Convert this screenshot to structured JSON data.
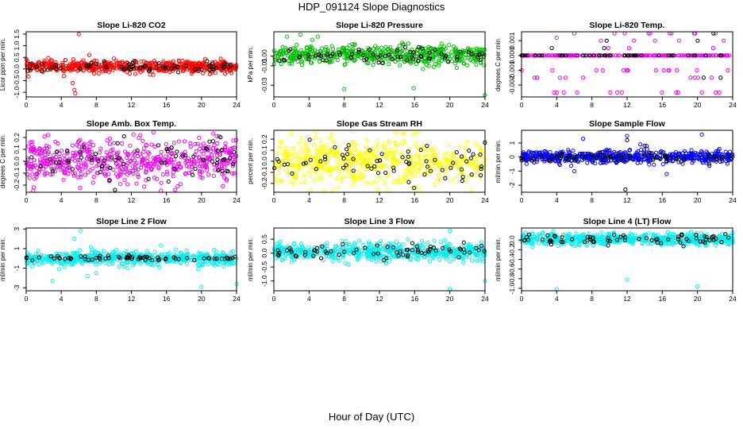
{
  "figure": {
    "title": "HDP_091124  Slope Diagnostics",
    "xlabel": "Hour of Day (UTC)"
  },
  "chart_data": [
    {
      "type": "scatter",
      "title": "Slope Li-820 CO2",
      "ylabel": "Licor ppm per min.",
      "xlim": [
        0,
        24
      ],
      "ylim": [
        -1.2,
        1.6
      ],
      "yticks": [
        -1.0,
        -0.5,
        0.0,
        0.5,
        1.0,
        1.5
      ],
      "ytick_labels": [
        "-1.0",
        "-0.5",
        "0.0",
        "0.5",
        "1.0",
        "1.5"
      ],
      "xticks": [
        0,
        4,
        8,
        12,
        16,
        20,
        24
      ],
      "series": [
        {
          "color": "#ff0000",
          "center": 0.1,
          "spread": 0.12,
          "count": 560,
          "outliers": [
            [
              6.0,
              1.5
            ],
            [
              5.3,
              -0.6
            ],
            [
              5.5,
              -0.9
            ],
            [
              5.6,
              -1.05
            ],
            [
              4.3,
              -0.3
            ],
            [
              7.2,
              0.6
            ],
            [
              10.0,
              0.45
            ]
          ]
        },
        {
          "color": "#000000",
          "center": 0.1,
          "spread": 0.1,
          "count": 70,
          "outliers": []
        }
      ]
    },
    {
      "type": "scatter",
      "title": "Slope Li-820 Pressure",
      "ylabel": "kPa per min.",
      "xlim": [
        0,
        24
      ],
      "ylim": [
        -0.042,
        0.025
      ],
      "yticks": [
        -0.03,
        -0.01,
        0.0
      ],
      "ytick_labels": [
        "-0.03",
        "-0.01",
        "0.00"
      ],
      "xticks": [
        0,
        4,
        8,
        12,
        16,
        20,
        24
      ],
      "series": [
        {
          "color": "#00bb00",
          "center": 0.001,
          "spread": 0.005,
          "count": 520,
          "outliers": [
            [
              8.0,
              -0.034
            ],
            [
              15.9,
              -0.033
            ],
            [
              24.0,
              -0.04
            ],
            [
              1.5,
              0.02
            ],
            [
              3.0,
              0.022
            ],
            [
              5.0,
              0.02
            ]
          ]
        },
        {
          "color": "#000000",
          "center": 0.0,
          "spread": 0.004,
          "count": 70,
          "outliers": []
        }
      ]
    },
    {
      "type": "scatter",
      "title": "Slope Li-820 Temp.",
      "ylabel": "degrees C per min.",
      "xlim": [
        0,
        24
      ],
      "ylim": [
        -0.0028,
        0.0016
      ],
      "yticks": [
        -0.002,
        -0.001,
        0.0,
        0.001
      ],
      "ytick_labels": [
        "-0.002",
        "-0.001",
        "0.000",
        "0.001"
      ],
      "xticks": [
        0,
        4,
        8,
        12,
        16,
        20,
        24
      ],
      "levels": [
        -0.0025,
        -0.0015,
        -0.001,
        0.0,
        0.0005,
        0.001,
        0.0015
      ],
      "series": [
        {
          "color": "#ee00ee",
          "center": 0.0,
          "spread": 0.0,
          "count": 260,
          "outliers": [
            [
              4.0,
              -0.0025
            ],
            [
              4.0,
              0.0012
            ],
            [
              6.0,
              0.0016
            ],
            [
              3.5,
              -0.001
            ],
            [
              5.0,
              -0.0015
            ]
          ]
        },
        {
          "color": "#000000",
          "center": 0.0,
          "spread": 0.0,
          "count": 50,
          "outliers": []
        }
      ]
    },
    {
      "type": "scatter",
      "title": "Slope Amb. Box Temp.",
      "ylabel": "degrees C per min.",
      "xlim": [
        0,
        24
      ],
      "ylim": [
        -0.26,
        0.26
      ],
      "yticks": [
        -0.2,
        -0.1,
        0.0,
        0.1,
        0.2
      ],
      "ytick_labels": [
        "-0.2",
        "-0.1",
        "0.0",
        "0.1",
        "0.2"
      ],
      "xticks": [
        0,
        4,
        8,
        12,
        16,
        20,
        24
      ],
      "series": [
        {
          "color": "#ee00ee",
          "center": 0.0,
          "spread": 0.09,
          "count": 560,
          "outliers": [
            [
              17.0,
              -0.24
            ],
            [
              2.5,
              0.22
            ],
            [
              22.0,
              0.21
            ]
          ]
        },
        {
          "color": "#000000",
          "center": 0.0,
          "spread": 0.08,
          "count": 70,
          "outliers": []
        }
      ]
    },
    {
      "type": "scatter",
      "title": "Slope Gas Stream RH",
      "ylabel": "percent per min.",
      "xlim": [
        0,
        24
      ],
      "ylim": [
        -0.28,
        0.28
      ],
      "yticks": [
        -0.2,
        -0.1,
        0.0,
        0.1,
        0.2
      ],
      "ytick_labels": [
        "-0.2",
        "-0.1",
        "0.0",
        "0.1",
        "0.2"
      ],
      "xticks": [
        0,
        4,
        8,
        12,
        16,
        20,
        24
      ],
      "series": [
        {
          "color": "#ffff00",
          "center": 0.0,
          "spread": 0.1,
          "count": 560,
          "outliers": [
            [
              13.0,
              -0.27
            ],
            [
              16.0,
              0.25
            ],
            [
              2.0,
              0.25
            ]
          ]
        },
        {
          "color": "#000000",
          "center": 0.0,
          "spread": 0.08,
          "count": 70,
          "outliers": []
        }
      ]
    },
    {
      "type": "scatter",
      "title": "Slope Sample Flow",
      "ylabel": "ml/min per min.",
      "xlim": [
        0,
        24
      ],
      "ylim": [
        -2.5,
        1.9
      ],
      "yticks": [
        -2,
        -1,
        0,
        1
      ],
      "ytick_labels": [
        "-2",
        "-1",
        "0",
        "1"
      ],
      "xticks": [
        0,
        4,
        8,
        12,
        16,
        20,
        24
      ],
      "series": [
        {
          "color": "#0000ff",
          "center": 0.0,
          "spread": 0.22,
          "count": 560,
          "outliers": [
            [
              7.0,
              1.3
            ],
            [
              12.0,
              1.5
            ],
            [
              16.5,
              -1.2
            ],
            [
              6.0,
              -1.0
            ],
            [
              20.5,
              1.6
            ],
            [
              13.5,
              0.9
            ]
          ]
        },
        {
          "color": "#000000",
          "center": 0.0,
          "spread": 0.2,
          "count": 70,
          "outliers": [
            [
              11.8,
              -2.3
            ],
            [
              12.0,
              1.2
            ],
            [
              14.0,
              0.8
            ]
          ]
        }
      ]
    },
    {
      "type": "scatter",
      "title": "Slope Line 2 Flow",
      "ylabel": "ml/min per min.",
      "xlim": [
        0,
        24
      ],
      "ylim": [
        -3.3,
        3.1
      ],
      "yticks": [
        -3,
        -1,
        1,
        3
      ],
      "ytick_labels": [
        "-3",
        "-1",
        "1",
        "3"
      ],
      "xticks": [
        0,
        4,
        8,
        12,
        16,
        20,
        24
      ],
      "series": [
        {
          "color": "#00eeee",
          "center": 0.0,
          "spread": 0.35,
          "count": 560,
          "outliers": [
            [
              6.2,
              2.8
            ],
            [
              7.0,
              -1.8
            ],
            [
              3.0,
              -2.3
            ],
            [
              20.0,
              -2.9
            ],
            [
              24.0,
              -2.6
            ],
            [
              5.5,
              2.0
            ],
            [
              8.0,
              -1.5
            ]
          ]
        },
        {
          "color": "#000000",
          "center": 0.0,
          "spread": 0.15,
          "count": 70,
          "outliers": []
        }
      ]
    },
    {
      "type": "scatter",
      "title": "Slope Line 3 Flow",
      "ylabel": "ml/min per min.",
      "xlim": [
        0,
        24
      ],
      "ylim": [
        -1.35,
        0.9
      ],
      "yticks": [
        -1.0,
        -0.5,
        0.0,
        0.5
      ],
      "ytick_labels": [
        "-1.0",
        "-0.5",
        "0.0",
        "0.5"
      ],
      "xticks": [
        0,
        4,
        8,
        12,
        16,
        20,
        24
      ],
      "series": [
        {
          "color": "#00eeee",
          "center": 0.05,
          "spread": 0.15,
          "count": 560,
          "outliers": [
            [
              20.0,
              -1.3
            ],
            [
              24.0,
              -1.0
            ],
            [
              20.0,
              0.8
            ],
            [
              8.5,
              -0.4
            ]
          ]
        },
        {
          "color": "#000000",
          "center": 0.05,
          "spread": 0.12,
          "count": 70,
          "outliers": []
        }
      ]
    },
    {
      "type": "scatter",
      "title": "Slope Line 4 (LT) Flow",
      "ylabel": "ml/min per min.",
      "xlim": [
        0,
        24
      ],
      "ylim": [
        -1.05,
        0.25
      ],
      "yticks": [
        -1.0,
        -0.8,
        -0.6,
        -0.4,
        -0.2,
        0.0
      ],
      "ytick_labels": [
        "-1.0",
        "-0.8",
        "-0.6",
        "-0.4",
        "-0.2",
        "0.0"
      ],
      "xticks": [
        0,
        4,
        8,
        12,
        16,
        20,
        24
      ],
      "series": [
        {
          "color": "#00eeee",
          "center": 0.02,
          "spread": 0.06,
          "count": 560,
          "outliers": [
            [
              4.0,
              -1.02
            ],
            [
              12.0,
              -0.82
            ],
            [
              20.0,
              -0.96
            ],
            [
              24.0,
              0.15
            ]
          ]
        },
        {
          "color": "#000000",
          "center": 0.02,
          "spread": 0.05,
          "count": 70,
          "outliers": []
        }
      ]
    }
  ]
}
